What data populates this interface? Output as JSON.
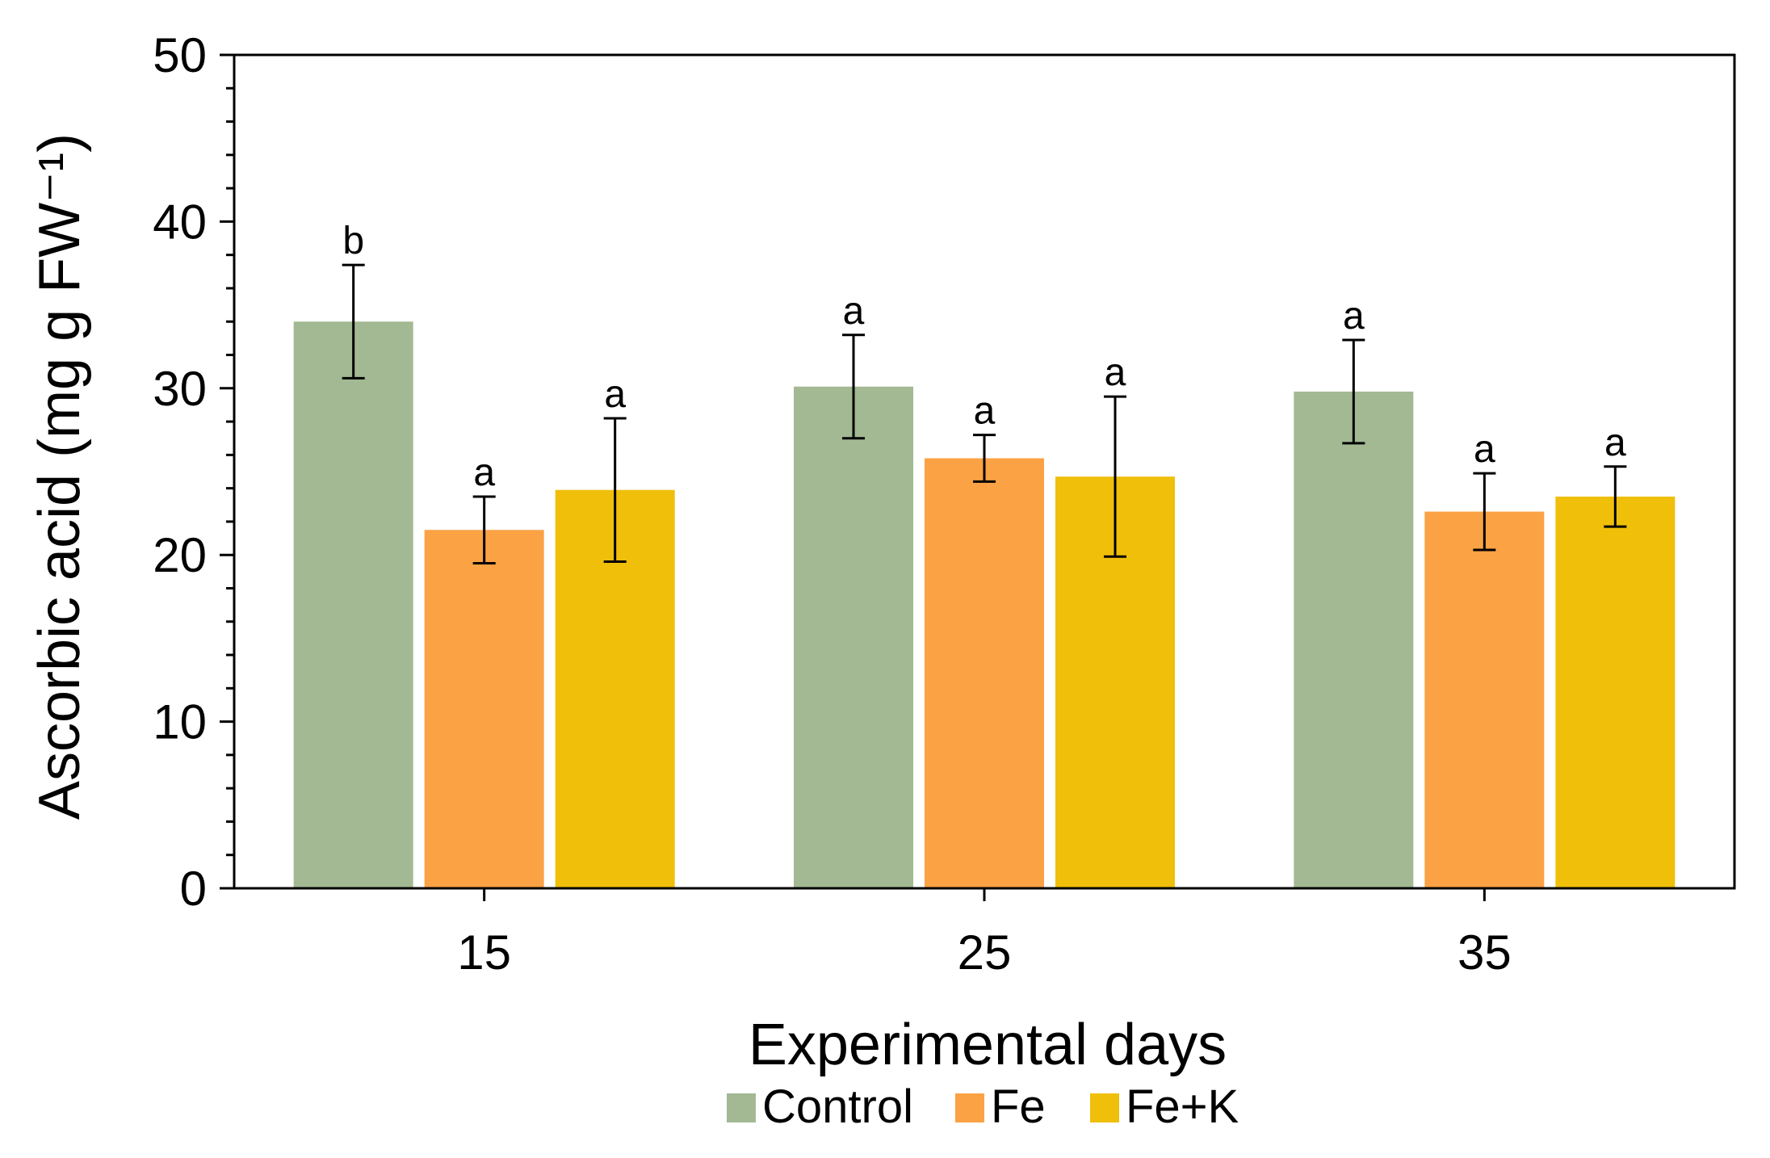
{
  "chart_data": {
    "type": "bar",
    "title": "",
    "xlabel": "Experimental days",
    "ylabel": "Ascorbic acid (mg g FW⁻¹)",
    "ylim": [
      0,
      50
    ],
    "yticks": [
      "0",
      "10",
      "20",
      "30",
      "40",
      "50"
    ],
    "categories": [
      "15",
      "25",
      "35"
    ],
    "series": [
      {
        "name": "Control",
        "color": "#A2B993",
        "values": [
          34.0,
          30.1,
          29.8
        ],
        "errors": [
          3.4,
          3.1,
          3.1
        ],
        "letters": [
          "b",
          "a",
          "a"
        ]
      },
      {
        "name": "Fe",
        "color": "#FBA244",
        "values": [
          21.5,
          25.8,
          22.6
        ],
        "errors": [
          2.0,
          1.4,
          2.3
        ],
        "letters": [
          "a",
          "a",
          "a"
        ]
      },
      {
        "name": "Fe+K",
        "color": "#F0BF0A",
        "values": [
          23.9,
          24.7,
          23.5
        ],
        "errors": [
          4.3,
          4.8,
          1.8
        ],
        "letters": [
          "a",
          "a",
          "a"
        ]
      }
    ],
    "legend": {
      "position": "bottom",
      "entries": [
        "Control",
        "Fe",
        "Fe+K"
      ]
    }
  }
}
